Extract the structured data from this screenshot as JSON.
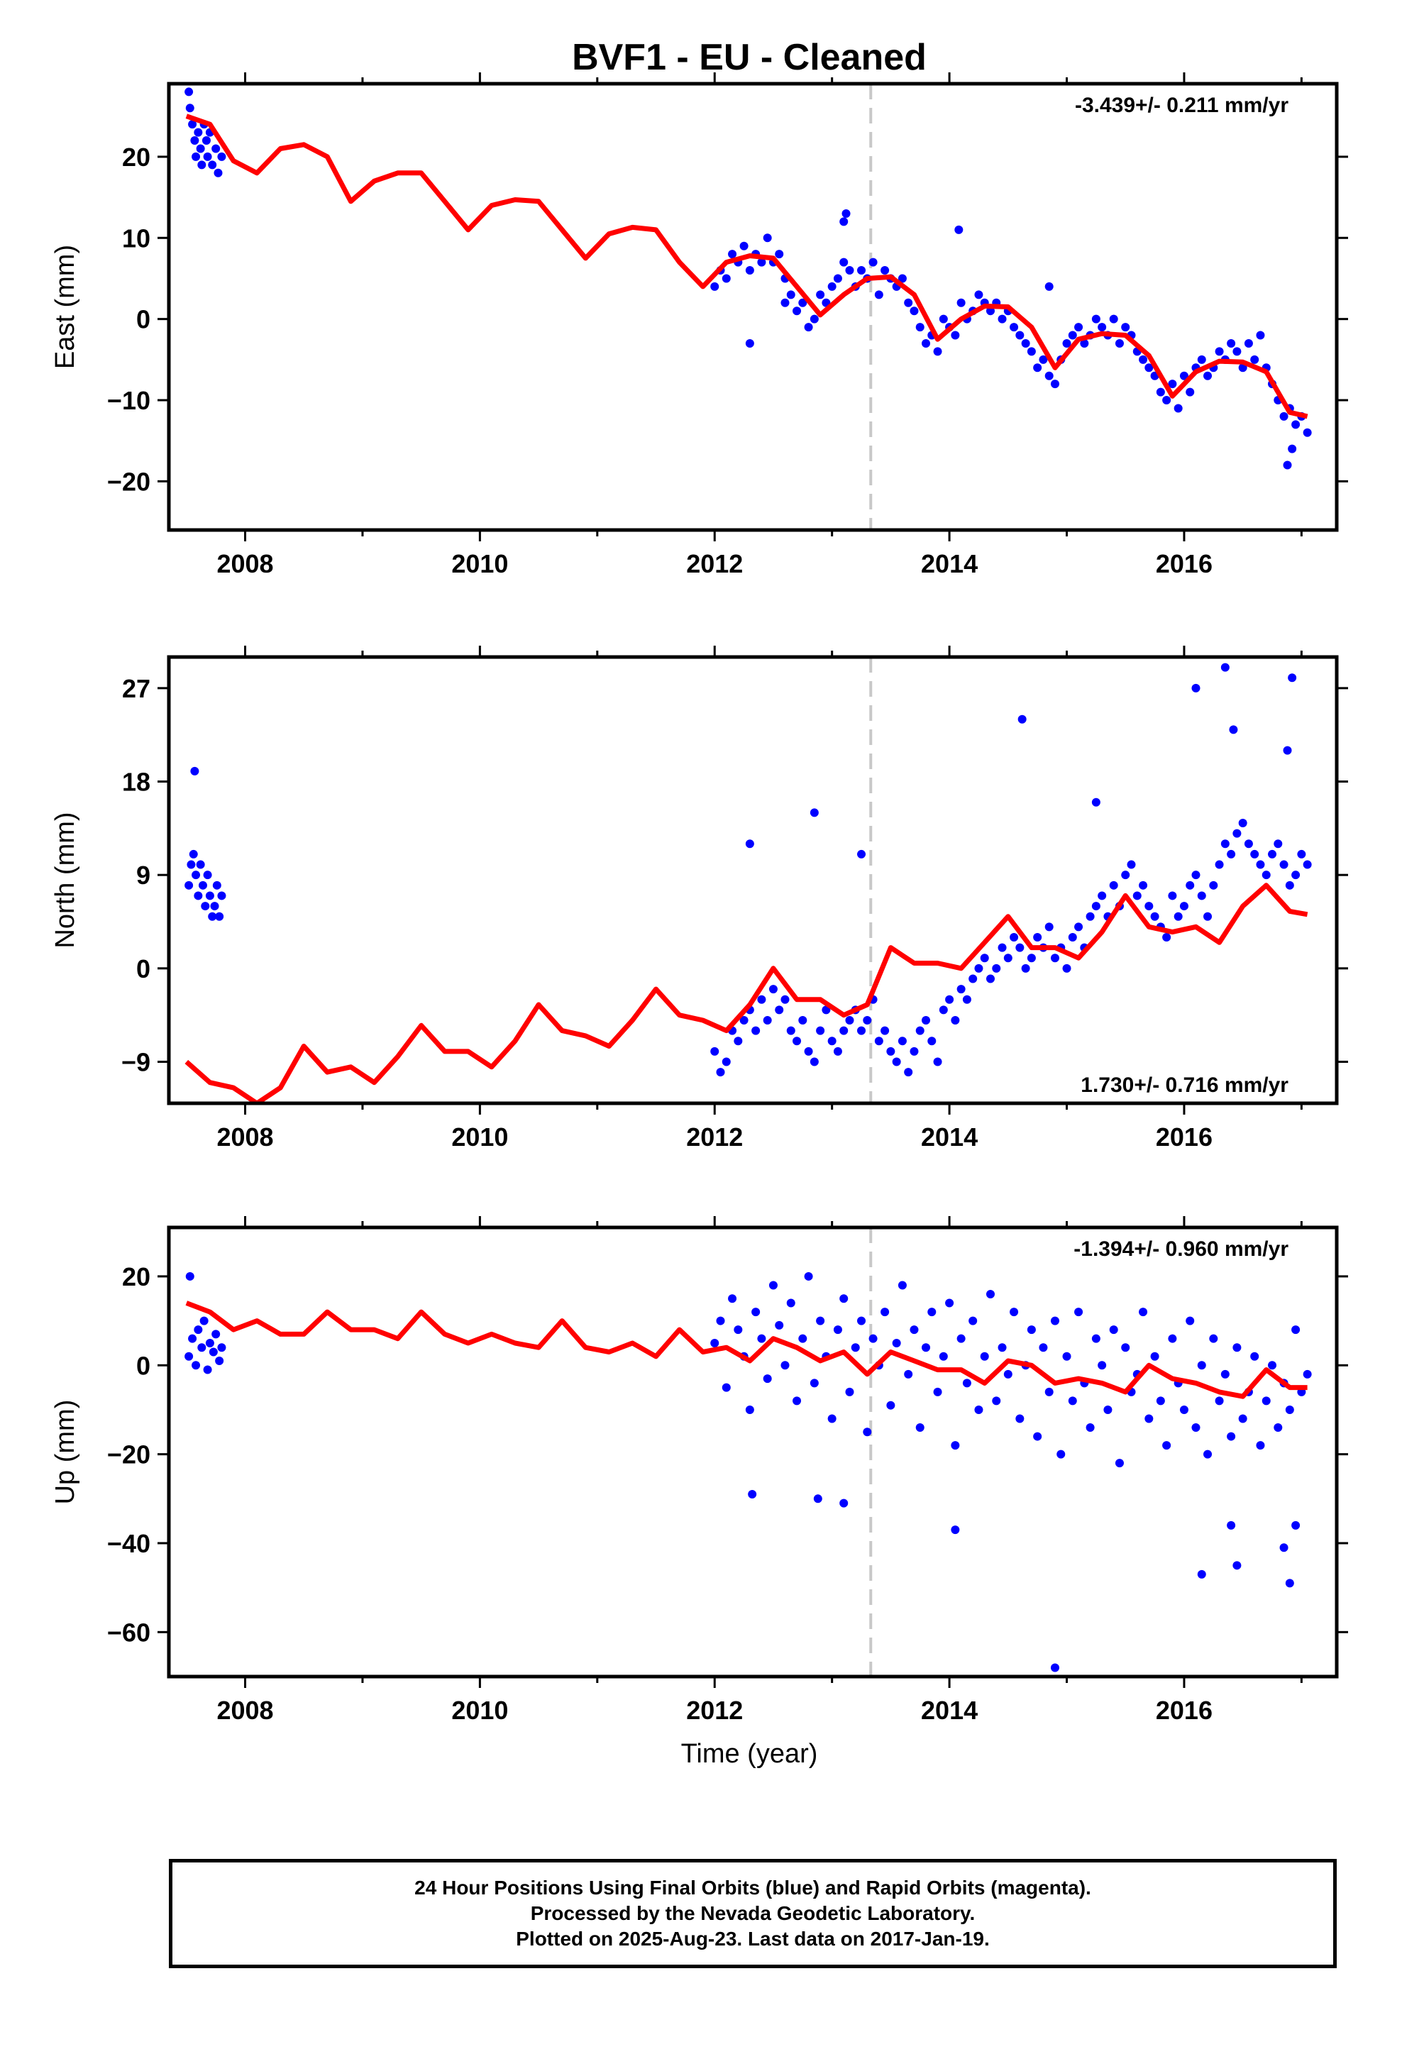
{
  "title": "BVF1  - EU - Cleaned",
  "xlabel": "Time (year)",
  "footer": {
    "line1": "24 Hour Positions Using Final Orbits (blue) and Rapid Orbits (magenta).",
    "line2": "Processed by the Nevada Geodetic Laboratory.",
    "line3": "Plotted on 2025-Aug-23. Last data on 2017-Jan-19."
  },
  "colors": {
    "points": "#0000ff",
    "model": "#ff0000",
    "marker_line": "#c8c8c8",
    "axes": "#000000"
  },
  "chart_data": [
    {
      "type": "scatter",
      "ylabel": "East (mm)",
      "rate_label": "-3.439+/- 0.211 mm/yr",
      "rate_position": "top-right",
      "xlim": [
        2007.35,
        2017.3
      ],
      "ylim": [
        -26,
        29
      ],
      "xticks": [
        2008,
        2010,
        2012,
        2014,
        2016
      ],
      "yticks": [
        -20,
        -10,
        0,
        10,
        20
      ],
      "event_line_x": 2013.33,
      "model": {
        "x": [
          2007.5,
          2007.7,
          2007.9,
          2008.1,
          2008.3,
          2008.5,
          2008.7,
          2008.9,
          2009.1,
          2009.3,
          2009.5,
          2009.7,
          2009.9,
          2010.1,
          2010.3,
          2010.5,
          2010.7,
          2010.9,
          2011.1,
          2011.3,
          2011.5,
          2011.7,
          2011.9,
          2012.1,
          2012.3,
          2012.5,
          2012.7,
          2012.9,
          2013.1,
          2013.3,
          2013.5,
          2013.7,
          2013.9,
          2014.1,
          2014.3,
          2014.5,
          2014.7,
          2014.9,
          2015.1,
          2015.3,
          2015.5,
          2015.7,
          2015.9,
          2016.1,
          2016.3,
          2016.5,
          2016.7,
          2016.9,
          2017.05
        ],
        "y": [
          25,
          24,
          19.5,
          18,
          21,
          21.5,
          20,
          14.5,
          17,
          18,
          18,
          14.5,
          11,
          14,
          14.7,
          14.5,
          11,
          7.5,
          10.5,
          11.3,
          11,
          7,
          4,
          7,
          7.8,
          7.5,
          4,
          0.5,
          3,
          5,
          5.2,
          3,
          -2.5,
          0,
          1.6,
          1.5,
          -1,
          -6,
          -2.5,
          -1.8,
          -2,
          -4.5,
          -9.5,
          -6.5,
          -5.2,
          -5.3,
          -6.5,
          -11.5,
          -12
        ]
      },
      "points": {
        "x": [
          2007.52,
          2007.53,
          2007.55,
          2007.57,
          2007.58,
          2007.6,
          2007.62,
          2007.63,
          2007.65,
          2007.67,
          2007.68,
          2007.7,
          2007.72,
          2007.75,
          2007.77,
          2007.8,
          2012.0,
          2012.05,
          2012.1,
          2012.15,
          2012.2,
          2012.25,
          2012.3,
          2012.35,
          2012.4,
          2012.45,
          2012.5,
          2012.55,
          2012.6,
          2012.65,
          2012.7,
          2012.75,
          2012.8,
          2012.85,
          2012.9,
          2012.95,
          2013.0,
          2013.05,
          2013.1,
          2013.15,
          2013.2,
          2013.25,
          2013.3,
          2013.35,
          2013.4,
          2013.45,
          2013.5,
          2013.55,
          2013.6,
          2013.65,
          2013.7,
          2013.75,
          2013.8,
          2013.85,
          2013.9,
          2013.95,
          2014.0,
          2014.05,
          2014.1,
          2014.15,
          2014.2,
          2014.25,
          2014.3,
          2014.35,
          2014.4,
          2014.45,
          2014.5,
          2014.55,
          2014.6,
          2014.65,
          2014.7,
          2014.75,
          2014.8,
          2014.85,
          2014.9,
          2014.95,
          2015.0,
          2015.05,
          2015.1,
          2015.15,
          2015.2,
          2015.25,
          2015.3,
          2015.35,
          2015.4,
          2015.45,
          2015.5,
          2015.55,
          2015.6,
          2015.65,
          2015.7,
          2015.75,
          2015.8,
          2015.85,
          2015.9,
          2015.95,
          2016.0,
          2016.05,
          2016.1,
          2016.15,
          2016.2,
          2016.25,
          2016.3,
          2016.35,
          2016.4,
          2016.45,
          2016.5,
          2016.55,
          2016.6,
          2016.65,
          2016.7,
          2016.75,
          2016.8,
          2016.85,
          2016.9,
          2016.95,
          2017.0,
          2017.05,
          2012.3,
          2012.6,
          2013.1,
          2013.12,
          2014.08,
          2014.85,
          2016.88,
          2016.92
        ],
        "y": [
          28,
          26,
          24,
          22,
          20,
          23,
          21,
          19,
          24,
          22,
          20,
          23,
          19,
          21,
          18,
          20,
          4,
          6,
          5,
          8,
          7,
          9,
          6,
          8,
          7,
          10,
          7,
          8,
          5,
          3,
          1,
          2,
          -1,
          0,
          3,
          2,
          4,
          5,
          7,
          6,
          4,
          6,
          5,
          7,
          3,
          6,
          5,
          4,
          5,
          2,
          1,
          -1,
          -3,
          -2,
          -4,
          0,
          -1,
          -2,
          2,
          0,
          1,
          3,
          2,
          1,
          2,
          0,
          1,
          -1,
          -2,
          -3,
          -4,
          -6,
          -5,
          -7,
          -8,
          -5,
          -3,
          -2,
          -1,
          -3,
          -2,
          0,
          -1,
          -2,
          0,
          -3,
          -1,
          -2,
          -4,
          -5,
          -6,
          -7,
          -9,
          -10,
          -8,
          -11,
          -7,
          -9,
          -6,
          -5,
          -7,
          -6,
          -4,
          -5,
          -3,
          -4,
          -6,
          -3,
          -5,
          -2,
          -6,
          -8,
          -10,
          -12,
          -11,
          -13,
          -12,
          -14,
          -3,
          2,
          12,
          13,
          11,
          4,
          -18,
          -16
        ]
      }
    },
    {
      "type": "scatter",
      "ylabel": "North (mm)",
      "rate_label": "1.730+/- 0.716 mm/yr",
      "rate_position": "bottom-right",
      "xlim": [
        2007.35,
        2017.3
      ],
      "ylim": [
        -13,
        30
      ],
      "xticks": [
        2008,
        2010,
        2012,
        2014,
        2016
      ],
      "yticks": [
        -9,
        0,
        9,
        18,
        27
      ],
      "event_line_x": 2013.33,
      "model": {
        "x": [
          2007.5,
          2007.7,
          2007.9,
          2008.1,
          2008.3,
          2008.5,
          2008.7,
          2008.9,
          2009.1,
          2009.3,
          2009.5,
          2009.7,
          2009.9,
          2010.1,
          2010.3,
          2010.5,
          2010.7,
          2010.9,
          2011.1,
          2011.3,
          2011.5,
          2011.7,
          2011.9,
          2012.1,
          2012.3,
          2012.5,
          2012.7,
          2012.9,
          2013.1,
          2013.3,
          2013.5,
          2013.7,
          2013.9,
          2014.1,
          2014.3,
          2014.5,
          2014.7,
          2014.9,
          2015.1,
          2015.3,
          2015.5,
          2015.7,
          2015.9,
          2016.1,
          2016.3,
          2016.5,
          2016.7,
          2016.9,
          2017.05
        ],
        "y": [
          -9,
          -11,
          -11.5,
          -13,
          -11.5,
          -7.5,
          -10,
          -9.5,
          -11,
          -8.5,
          -5.5,
          -8,
          -8,
          -9.5,
          -7,
          -3.5,
          -6,
          -6.5,
          -7.5,
          -5,
          -2,
          -4.5,
          -5,
          -6,
          -3.5,
          0,
          -3,
          -3,
          -4.5,
          -3.5,
          2,
          0.5,
          0.5,
          0,
          2.5,
          5,
          2,
          2,
          1,
          3.5,
          7,
          4,
          3.5,
          4,
          2.5,
          6,
          8,
          5.5,
          5.2
        ]
      },
      "points": {
        "x": [
          2007.52,
          2007.54,
          2007.56,
          2007.58,
          2007.6,
          2007.62,
          2007.64,
          2007.66,
          2007.68,
          2007.7,
          2007.72,
          2007.74,
          2007.76,
          2007.78,
          2007.8,
          2007.57,
          2012.0,
          2012.05,
          2012.1,
          2012.15,
          2012.2,
          2012.25,
          2012.3,
          2012.35,
          2012.4,
          2012.45,
          2012.5,
          2012.55,
          2012.6,
          2012.65,
          2012.7,
          2012.75,
          2012.8,
          2012.85,
          2012.9,
          2012.95,
          2013.0,
          2013.05,
          2013.1,
          2013.15,
          2013.2,
          2013.25,
          2013.3,
          2013.35,
          2013.4,
          2013.45,
          2013.5,
          2013.55,
          2013.6,
          2013.65,
          2013.7,
          2013.75,
          2013.8,
          2013.85,
          2013.9,
          2013.95,
          2014.0,
          2014.05,
          2014.1,
          2014.15,
          2014.2,
          2014.25,
          2014.3,
          2014.35,
          2014.4,
          2014.45,
          2014.5,
          2014.55,
          2014.6,
          2014.65,
          2014.7,
          2014.75,
          2014.8,
          2014.85,
          2014.9,
          2014.95,
          2015.0,
          2015.05,
          2015.1,
          2015.15,
          2015.2,
          2015.25,
          2015.3,
          2015.35,
          2015.4,
          2015.45,
          2015.5,
          2015.55,
          2015.6,
          2015.65,
          2015.7,
          2015.75,
          2015.8,
          2015.85,
          2015.9,
          2015.95,
          2016.0,
          2016.05,
          2016.1,
          2016.15,
          2016.2,
          2016.25,
          2016.3,
          2016.35,
          2016.4,
          2016.45,
          2016.5,
          2016.55,
          2016.6,
          2016.65,
          2016.7,
          2016.75,
          2016.8,
          2016.85,
          2016.9,
          2016.95,
          2017.0,
          2017.05,
          2012.3,
          2012.85,
          2013.25,
          2014.62,
          2015.25,
          2016.1,
          2016.35,
          2016.42,
          2016.88,
          2016.92
        ],
        "y": [
          8,
          10,
          11,
          9,
          7,
          10,
          8,
          6,
          9,
          7,
          5,
          6,
          8,
          5,
          7,
          19,
          -8,
          -10,
          -9,
          -6,
          -7,
          -5,
          -4,
          -6,
          -3,
          -5,
          -2,
          -4,
          -3,
          -6,
          -7,
          -5,
          -8,
          -9,
          -6,
          -4,
          -7,
          -8,
          -6,
          -5,
          -4,
          -6,
          -5,
          -3,
          -7,
          -6,
          -8,
          -9,
          -7,
          -10,
          -8,
          -6,
          -5,
          -7,
          -9,
          -4,
          -3,
          -5,
          -2,
          -3,
          -1,
          0,
          1,
          -1,
          0,
          2,
          1,
          3,
          2,
          0,
          1,
          3,
          2,
          4,
          1,
          2,
          0,
          3,
          4,
          2,
          5,
          6,
          7,
          5,
          8,
          6,
          9,
          10,
          7,
          8,
          6,
          5,
          4,
          3,
          7,
          5,
          6,
          8,
          9,
          7,
          5,
          8,
          10,
          12,
          11,
          13,
          14,
          12,
          11,
          10,
          9,
          11,
          12,
          10,
          8,
          9,
          11,
          10,
          12,
          15,
          11,
          24,
          16,
          27,
          29,
          23,
          21,
          28
        ]
      }
    },
    {
      "type": "scatter",
      "ylabel": "Up (mm)",
      "rate_label": "-1.394+/- 0.960 mm/yr",
      "rate_position": "top-right",
      "xlim": [
        2007.35,
        2017.3
      ],
      "ylim": [
        -70,
        31
      ],
      "xticks": [
        2008,
        2010,
        2012,
        2014,
        2016
      ],
      "yticks": [
        -60,
        -40,
        -20,
        0,
        20
      ],
      "event_line_x": 2013.33,
      "model": {
        "x": [
          2007.5,
          2007.7,
          2007.9,
          2008.1,
          2008.3,
          2008.5,
          2008.7,
          2008.9,
          2009.1,
          2009.3,
          2009.5,
          2009.7,
          2009.9,
          2010.1,
          2010.3,
          2010.5,
          2010.7,
          2010.9,
          2011.1,
          2011.3,
          2011.5,
          2011.7,
          2011.9,
          2012.1,
          2012.3,
          2012.5,
          2012.7,
          2012.9,
          2013.1,
          2013.3,
          2013.5,
          2013.7,
          2013.9,
          2014.1,
          2014.3,
          2014.5,
          2014.7,
          2014.9,
          2015.1,
          2015.3,
          2015.5,
          2015.7,
          2015.9,
          2016.1,
          2016.3,
          2016.5,
          2016.7,
          2016.9,
          2017.05
        ],
        "y": [
          14,
          12,
          8,
          10,
          7,
          7,
          12,
          8,
          8,
          6,
          12,
          7,
          5,
          7,
          5,
          4,
          10,
          4,
          3,
          5,
          2,
          8,
          3,
          4,
          1,
          6,
          4,
          1,
          3,
          -2,
          3,
          1,
          -1,
          -1,
          -4,
          1,
          0,
          -4,
          -3,
          -4,
          -6,
          0,
          -3,
          -4,
          -6,
          -7,
          -1,
          -5,
          -5
        ]
      },
      "points": {
        "x": [
          2007.52,
          2007.55,
          2007.58,
          2007.6,
          2007.63,
          2007.65,
          2007.68,
          2007.7,
          2007.73,
          2007.75,
          2007.78,
          2007.8,
          2012.0,
          2012.05,
          2012.1,
          2012.15,
          2012.2,
          2012.25,
          2012.3,
          2012.35,
          2012.4,
          2012.45,
          2012.5,
          2012.55,
          2012.6,
          2012.65,
          2012.7,
          2012.75,
          2012.8,
          2012.85,
          2012.9,
          2012.95,
          2013.0,
          2013.05,
          2013.1,
          2013.15,
          2013.2,
          2013.25,
          2013.3,
          2013.35,
          2013.4,
          2013.45,
          2013.5,
          2013.55,
          2013.6,
          2013.65,
          2013.7,
          2013.75,
          2013.8,
          2013.85,
          2013.9,
          2013.95,
          2014.0,
          2014.05,
          2014.1,
          2014.15,
          2014.2,
          2014.25,
          2014.3,
          2014.35,
          2014.4,
          2014.45,
          2014.5,
          2014.55,
          2014.6,
          2014.65,
          2014.7,
          2014.75,
          2014.8,
          2014.85,
          2014.9,
          2014.95,
          2015.0,
          2015.05,
          2015.1,
          2015.15,
          2015.2,
          2015.25,
          2015.3,
          2015.35,
          2015.4,
          2015.45,
          2015.5,
          2015.55,
          2015.6,
          2015.65,
          2015.7,
          2015.75,
          2015.8,
          2015.85,
          2015.9,
          2015.95,
          2016.0,
          2016.05,
          2016.1,
          2016.15,
          2016.2,
          2016.25,
          2016.3,
          2016.35,
          2016.4,
          2016.45,
          2016.5,
          2016.55,
          2016.6,
          2016.65,
          2016.7,
          2016.75,
          2016.8,
          2016.85,
          2016.9,
          2016.95,
          2017.0,
          2017.05,
          2007.53,
          2012.32,
          2012.88,
          2013.1,
          2014.05,
          2014.9,
          2016.15,
          2016.4,
          2016.45,
          2016.85,
          2016.9,
          2016.95
        ],
        "y": [
          2,
          6,
          0,
          8,
          4,
          10,
          -1,
          5,
          3,
          7,
          1,
          4,
          5,
          10,
          -5,
          15,
          8,
          2,
          -10,
          12,
          6,
          -3,
          18,
          9,
          0,
          14,
          -8,
          6,
          20,
          -4,
          10,
          2,
          -12,
          8,
          15,
          -6,
          4,
          10,
          -15,
          6,
          0,
          12,
          -9,
          5,
          18,
          -2,
          8,
          -14,
          4,
          12,
          -6,
          2,
          14,
          -18,
          6,
          -4,
          10,
          -10,
          2,
          16,
          -8,
          4,
          -2,
          12,
          -12,
          0,
          8,
          -16,
          4,
          -6,
          10,
          -20,
          2,
          -8,
          12,
          -4,
          -14,
          6,
          0,
          -10,
          8,
          -22,
          4,
          -6,
          -2,
          12,
          -12,
          2,
          -8,
          -18,
          6,
          -4,
          -10,
          10,
          -14,
          0,
          -20,
          6,
          -8,
          -2,
          -16,
          4,
          -12,
          -6,
          2,
          -18,
          -8,
          0,
          -14,
          -4,
          -10,
          8,
          -6,
          -2,
          20,
          -29,
          -30,
          -31,
          -37,
          -68,
          -47,
          -36,
          -45,
          -41,
          -49,
          -36
        ]
      }
    }
  ]
}
